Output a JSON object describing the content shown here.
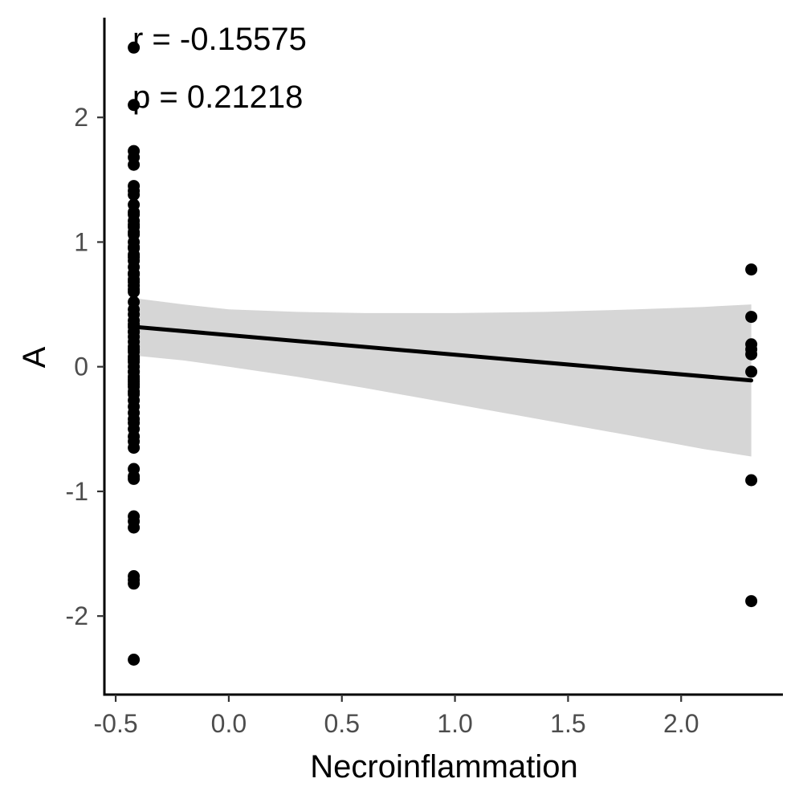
{
  "chart_data": {
    "type": "scatter",
    "title": "",
    "xlabel": "Necroinflammation",
    "ylabel": "A",
    "xlim": [
      -0.55,
      2.45
    ],
    "ylim": [
      -2.63,
      2.8
    ],
    "x_ticks": [
      -0.5,
      0.0,
      0.5,
      1.0,
      1.5,
      2.0
    ],
    "x_tick_labels": [
      "-0.5",
      "0.0",
      "0.5",
      "1.0",
      "1.5",
      "2.0"
    ],
    "y_ticks": [
      -2,
      -1,
      0,
      1,
      2
    ],
    "y_tick_labels": [
      "-2",
      "-1",
      "0",
      "1",
      "2"
    ],
    "grid": false,
    "annotations": [
      "r = -0.15575",
      "p = 0.21218"
    ],
    "series": [
      {
        "x": [
          -0.42,
          -0.42,
          -0.42,
          -0.42,
          -0.42,
          -0.42,
          -0.42,
          -0.42,
          -0.42,
          -0.42,
          -0.42,
          -0.42,
          -0.42,
          -0.42,
          -0.42,
          -0.42,
          -0.42,
          -0.42,
          -0.42,
          -0.42,
          -0.42,
          -0.42,
          -0.42,
          -0.42,
          -0.42,
          -0.42,
          -0.42,
          -0.42,
          -0.42,
          -0.42,
          -0.42,
          -0.42,
          -0.42,
          -0.42,
          -0.42,
          -0.42,
          -0.42,
          -0.42,
          -0.42,
          -0.42,
          -0.42,
          -0.42,
          -0.42,
          -0.42,
          -0.42,
          -0.42,
          -0.42,
          -0.42,
          -0.42,
          -0.42,
          -0.42,
          -0.42,
          -0.42,
          -0.42,
          -0.42,
          -0.42,
          -0.42,
          -0.42,
          -0.42,
          -0.42,
          -0.42,
          -0.42,
          -0.42,
          -0.42,
          -0.42,
          -0.42,
          -0.42,
          -0.42,
          -0.42,
          -0.42,
          -0.42,
          -0.42,
          -0.42,
          -0.42,
          -0.42,
          2.31,
          2.31,
          2.31,
          2.31,
          2.31,
          2.31,
          2.31,
          2.31
        ],
        "y": [
          2.56,
          2.1,
          1.73,
          1.68,
          1.62,
          1.45,
          1.41,
          1.3,
          1.22,
          1.17,
          1.12,
          1.06,
          1.0,
          0.95,
          0.9,
          0.85,
          0.8,
          0.75,
          0.7,
          0.65,
          0.6,
          0.42,
          0.37,
          0.32,
          0.28,
          0.24,
          0.2,
          0.16,
          0.12,
          0.08,
          0.04,
          0.0,
          -0.04,
          -0.08,
          -0.12,
          -0.16,
          -0.2,
          -0.27,
          -0.32,
          -0.37,
          -0.45,
          -0.5,
          -0.56,
          -0.6,
          -0.65,
          -0.82,
          -0.88,
          -0.9,
          -1.2,
          -1.24,
          -1.29,
          -1.68,
          -1.71,
          -1.74,
          -2.35,
          1.08,
          0.88,
          0.68,
          0.52,
          0.14,
          -0.1,
          0.62,
          0.06,
          -0.22,
          0.96,
          1.38,
          -0.42,
          0.46,
          0.28,
          1.14,
          -0.04,
          -0.14,
          0.74,
          1.24,
          0.34,
          0.78,
          0.4,
          0.18,
          0.14,
          0.1,
          -0.04,
          -0.91,
          -1.88
        ]
      }
    ],
    "fit_line": {
      "x": [
        -0.42,
        2.31
      ],
      "y": [
        0.32,
        -0.11
      ]
    },
    "confidence_band": {
      "x": [
        -0.42,
        -0.2,
        0.0,
        0.3,
        0.6,
        1.0,
        1.4,
        1.8,
        2.1,
        2.31
      ],
      "upper": [
        0.55,
        0.5,
        0.46,
        0.44,
        0.43,
        0.43,
        0.44,
        0.46,
        0.48,
        0.5
      ],
      "lower": [
        0.09,
        0.05,
        0.0,
        -0.08,
        -0.17,
        -0.3,
        -0.43,
        -0.56,
        -0.66,
        -0.72
      ]
    }
  }
}
